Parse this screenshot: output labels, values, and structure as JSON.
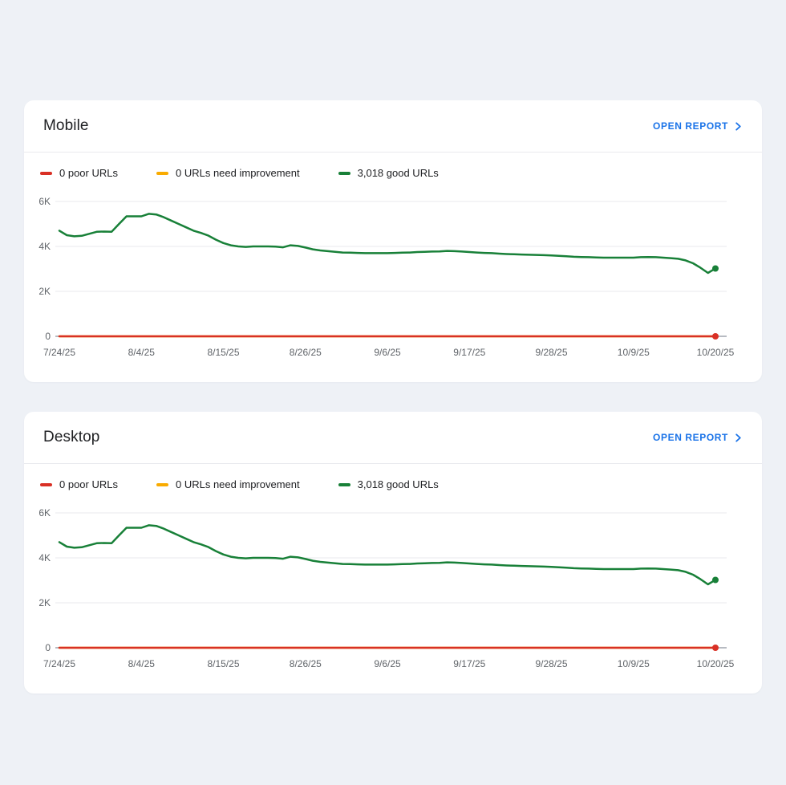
{
  "colors": {
    "background": "#eef1f6",
    "card": "#ffffff",
    "divider": "#e9eaee",
    "title_text": "#202124",
    "legend_text": "#202124",
    "axis_text": "#5f6368",
    "grid_line": "#e8eaed",
    "zero_line": "#b7bbc2",
    "link_blue": "#1a73e8",
    "poor_red": "#d93025",
    "improvement_orange": "#f9ab00",
    "good_green": "#188038"
  },
  "cards": [
    {
      "title": "Mobile",
      "open_report_label": "OPEN REPORT",
      "legend": [
        {
          "label": "0 poor URLs",
          "color": "#d93025"
        },
        {
          "label": "0 URLs need improvement",
          "color": "#f9ab00"
        },
        {
          "label": "3,018 good URLs",
          "color": "#188038"
        }
      ]
    },
    {
      "title": "Desktop",
      "open_report_label": "OPEN REPORT",
      "legend": [
        {
          "label": "0 poor URLs",
          "color": "#d93025"
        },
        {
          "label": "0 URLs need improvement",
          "color": "#f9ab00"
        },
        {
          "label": "3,018 good URLs",
          "color": "#188038"
        }
      ]
    }
  ],
  "chart_data": [
    {
      "device": "Mobile",
      "type": "line",
      "title": "",
      "xlabel": "",
      "ylabel": "",
      "grid": true,
      "legend_position": "top",
      "ylim": [
        0,
        6000
      ],
      "y_tick_values": [
        6000,
        4000,
        2000,
        0
      ],
      "y_tick_labels": [
        "6K",
        "4K",
        "2K",
        "0"
      ],
      "x_tick_days": [
        0,
        11,
        22,
        33,
        44,
        55,
        66,
        77,
        88
      ],
      "x_tick_labels": [
        "7/24/25",
        "8/4/25",
        "8/15/25",
        "8/26/25",
        "9/6/25",
        "9/17/25",
        "9/28/25",
        "10/9/25",
        "10/20/25"
      ],
      "x_total_days": 88,
      "series": [
        {
          "name": "needs-improvement-urls",
          "label": "0 URLs need improvement",
          "color": "#f9ab00",
          "constant_value": 0,
          "end_dot": false
        },
        {
          "name": "poor-urls",
          "label": "0 poor URLs",
          "color": "#d93025",
          "constant_value": 0,
          "end_dot": true,
          "end_value": 0
        },
        {
          "name": "good-urls",
          "label": "3,018 good URLs",
          "color": "#188038",
          "end_dot": true,
          "end_value": 3018,
          "values": [
            4700,
            4500,
            4450,
            4470,
            4560,
            4650,
            4660,
            4650,
            5000,
            5340,
            5340,
            5340,
            5450,
            5420,
            5300,
            5150,
            5000,
            4850,
            4700,
            4600,
            4480,
            4300,
            4150,
            4050,
            4000,
            3980,
            4000,
            4000,
            4000,
            3990,
            3960,
            4050,
            4020,
            3950,
            3870,
            3820,
            3790,
            3760,
            3730,
            3720,
            3710,
            3700,
            3700,
            3700,
            3700,
            3710,
            3720,
            3730,
            3750,
            3760,
            3770,
            3780,
            3800,
            3790,
            3770,
            3750,
            3730,
            3710,
            3700,
            3680,
            3660,
            3650,
            3640,
            3630,
            3620,
            3610,
            3600,
            3580,
            3560,
            3540,
            3530,
            3520,
            3510,
            3500,
            3500,
            3500,
            3500,
            3500,
            3520,
            3530,
            3520,
            3500,
            3480,
            3450,
            3380,
            3250,
            3050,
            2820,
            3018
          ]
        }
      ]
    },
    {
      "device": "Desktop",
      "type": "line",
      "title": "",
      "xlabel": "",
      "ylabel": "",
      "grid": true,
      "legend_position": "top",
      "ylim": [
        0,
        6000
      ],
      "y_tick_values": [
        6000,
        4000,
        2000,
        0
      ],
      "y_tick_labels": [
        "6K",
        "4K",
        "2K",
        "0"
      ],
      "x_tick_days": [
        0,
        11,
        22,
        33,
        44,
        55,
        66,
        77,
        88
      ],
      "x_tick_labels": [
        "7/24/25",
        "8/4/25",
        "8/15/25",
        "8/26/25",
        "9/6/25",
        "9/17/25",
        "9/28/25",
        "10/9/25",
        "10/20/25"
      ],
      "x_total_days": 88,
      "series": [
        {
          "name": "needs-improvement-urls",
          "label": "0 URLs need improvement",
          "color": "#f9ab00",
          "constant_value": 0,
          "end_dot": false
        },
        {
          "name": "poor-urls",
          "label": "0 poor URLs",
          "color": "#d93025",
          "constant_value": 0,
          "end_dot": true,
          "end_value": 0
        },
        {
          "name": "good-urls",
          "label": "3,018 good URLs",
          "color": "#188038",
          "end_dot": true,
          "end_value": 3018,
          "values": [
            4700,
            4500,
            4450,
            4470,
            4560,
            4650,
            4660,
            4650,
            5000,
            5340,
            5340,
            5340,
            5450,
            5420,
            5300,
            5150,
            5000,
            4850,
            4700,
            4600,
            4480,
            4300,
            4150,
            4050,
            4000,
            3980,
            4000,
            4000,
            4000,
            3990,
            3960,
            4050,
            4020,
            3950,
            3870,
            3820,
            3790,
            3760,
            3730,
            3720,
            3710,
            3700,
            3700,
            3700,
            3700,
            3710,
            3720,
            3730,
            3750,
            3760,
            3770,
            3780,
            3800,
            3790,
            3770,
            3750,
            3730,
            3710,
            3700,
            3680,
            3660,
            3650,
            3640,
            3630,
            3620,
            3610,
            3600,
            3580,
            3560,
            3540,
            3530,
            3520,
            3510,
            3500,
            3500,
            3500,
            3500,
            3500,
            3520,
            3530,
            3520,
            3500,
            3480,
            3450,
            3380,
            3250,
            3050,
            2820,
            3018
          ]
        }
      ]
    }
  ]
}
